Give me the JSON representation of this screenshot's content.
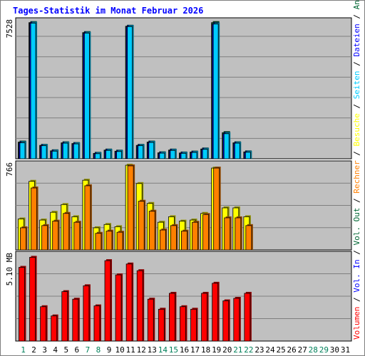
{
  "chart_data": {
    "type": "bar",
    "title": "Tages-Statistik im Monat Februar 2026",
    "days": [
      "1",
      "2",
      "3",
      "4",
      "5",
      "6",
      "7",
      "8",
      "9",
      "10",
      "11",
      "12",
      "13",
      "14",
      "15",
      "16",
      "17",
      "18",
      "19",
      "20",
      "21",
      "22",
      "23",
      "24",
      "25",
      "26",
      "27",
      "28",
      "29",
      "30",
      "31"
    ],
    "weekend_days": [
      "1",
      "7",
      "8",
      "14",
      "15",
      "21",
      "22",
      "28",
      "29"
    ],
    "panels": [
      {
        "id": "requests",
        "max_label": "7528",
        "ymax": 7528,
        "series": [
          {
            "name": "Anfragen",
            "color": "#006633",
            "values": [
              920,
              7500,
              740,
              440,
              880,
              840,
              6950,
              300,
              480,
              420,
              7300,
              740,
              920,
              330,
              480,
              320,
              370,
              540,
              7500,
              1440,
              880,
              380,
              0,
              0,
              0,
              0,
              0,
              0,
              0,
              0,
              0
            ]
          },
          {
            "name": "Dateien",
            "color": "#0000ff",
            "values": [
              880,
              7470,
              720,
              420,
              860,
              820,
              6920,
              280,
              460,
              400,
              7280,
              720,
              900,
              310,
              460,
              300,
              350,
              520,
              7420,
              1380,
              860,
              360,
              0,
              0,
              0,
              0,
              0,
              0,
              0,
              0,
              0
            ]
          },
          {
            "name": "Seiten",
            "color": "#00ccff",
            "values": [
              880,
              7470,
              720,
              420,
              860,
              820,
              6920,
              280,
              460,
              400,
              7280,
              720,
              900,
              310,
              460,
              300,
              350,
              520,
              7420,
              1380,
              860,
              360,
              0,
              0,
              0,
              0,
              0,
              0,
              0,
              0,
              0
            ]
          }
        ]
      },
      {
        "id": "visits",
        "max_label": "766",
        "ymax": 766,
        "series": [
          {
            "name": "Besuche",
            "color": "#ffff00",
            "values": [
              280,
              620,
              270,
              340,
              410,
              300,
              630,
              200,
              230,
              210,
              766,
              600,
              420,
              250,
              300,
              260,
              270,
              330,
              740,
              380,
              380,
              300,
              0,
              0,
              0,
              0,
              0,
              0,
              0,
              0,
              0
            ]
          },
          {
            "name": "Rechner",
            "color": "#ff8000",
            "values": [
              200,
              560,
              220,
              260,
              330,
              250,
              580,
              150,
              170,
              160,
              760,
              440,
              350,
              180,
              220,
              170,
              250,
              320,
              740,
              290,
              290,
              220,
              0,
              0,
              0,
              0,
              0,
              0,
              0,
              0,
              0
            ]
          }
        ]
      },
      {
        "id": "volume",
        "max_label": "5.10 MB",
        "ymax": 5.1,
        "series": [
          {
            "name": "Volumen",
            "color": "#ff0000",
            "values": [
              4.4,
              5.0,
              2.05,
              1.5,
              2.95,
              2.5,
              3.3,
              2.1,
              4.8,
              3.95,
              4.6,
              4.2,
              2.5,
              1.9,
              2.85,
              2.05,
              1.9,
              2.85,
              3.45,
              2.4,
              2.55,
              2.85,
              0,
              0,
              0,
              0,
              0,
              0,
              0,
              0,
              0
            ]
          }
        ]
      }
    ],
    "legend": [
      {
        "text": "Volumen",
        "color": "#ff0000"
      },
      {
        "text": "Vol. In",
        "color": "#0000ff"
      },
      {
        "text": "Vol. Out",
        "color": "#006633"
      },
      {
        "text": "Rechner",
        "color": "#ff8000"
      },
      {
        "text": "Besuche",
        "color": "#ffff00"
      },
      {
        "text": "Seiten",
        "color": "#00ccff"
      },
      {
        "text": "Dateien",
        "color": "#0000ff"
      },
      {
        "text": "Anfragen",
        "color": "#006633"
      }
    ],
    "legend_separator": " / ",
    "grid": true,
    "legend_placement": "right (vertical)",
    "colors": {
      "plot_background": "#c0c0c0",
      "frame_background": "#ffffff",
      "title": "#0000ff",
      "weekday_label": "#000000",
      "weekend_label": "#00805a",
      "gridline": "#7f7f7f"
    }
  }
}
